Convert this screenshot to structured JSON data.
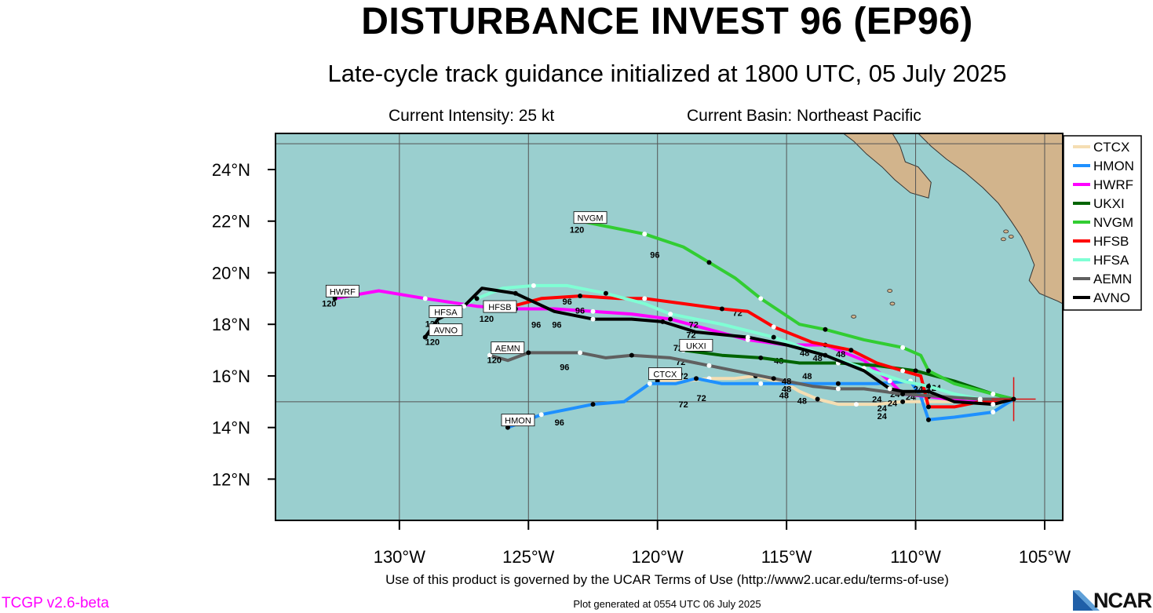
{
  "title": "DISTURBANCE INVEST 96 (EP96)",
  "subtitle": "Late-cycle track guidance initialized at 1800 UTC, 05 July 2025",
  "current_intensity": "Current Intensity: 25 kt",
  "current_basin": "Current Basin: Northeast Pacific",
  "terms": "Use of this product is governed by the UCAR Terms of Use (http://www2.ucar.edu/terms-of-use)",
  "generated": "Plot generated at 0554 UTC   06 July 2025",
  "version": "TCGP v2.6-beta",
  "logo_text": "NCAR",
  "colors": {
    "ocean": "#9acfcf",
    "land": "#d2b48c",
    "center_marker": "#e01010"
  },
  "map": {
    "lon_range": [
      -134.8,
      -104.3
    ],
    "lat_range": [
      10.4,
      25.4
    ],
    "lat_ticks": [
      {
        "value": 12,
        "label": "12°N"
      },
      {
        "value": 14,
        "label": "14°N"
      },
      {
        "value": 16,
        "label": "16°N"
      },
      {
        "value": 18,
        "label": "18°N"
      },
      {
        "value": 20,
        "label": "20°N"
      },
      {
        "value": 22,
        "label": "22°N"
      },
      {
        "value": 24,
        "label": "24°N"
      }
    ],
    "lon_ticks": [
      {
        "value": -130,
        "label": "130°W"
      },
      {
        "value": -125,
        "label": "125°W"
      },
      {
        "value": -120,
        "label": "120°W"
      },
      {
        "value": -115,
        "label": "115°W"
      },
      {
        "value": -110,
        "label": "110°W"
      },
      {
        "value": -105,
        "label": "105°W"
      }
    ],
    "grid_lons": [
      -130,
      -125,
      -120,
      -115,
      -110,
      -105
    ],
    "grid_lats": [
      15,
      25
    ],
    "initial_position": {
      "lon": -106.2,
      "lat": 15.1
    },
    "land": [
      [
        [
          -112.8,
          25.4
        ],
        [
          -112.4,
          25.1
        ],
        [
          -111.9,
          24.6
        ],
        [
          -111.3,
          24.1
        ],
        [
          -110.8,
          23.6
        ],
        [
          -110.2,
          23.1
        ],
        [
          -109.5,
          22.9
        ],
        [
          -109.4,
          23.5
        ],
        [
          -109.9,
          24.1
        ],
        [
          -110.4,
          24.3
        ],
        [
          -110.6,
          24.9
        ],
        [
          -110.9,
          25.4
        ]
      ],
      [
        [
          -109.9,
          25.4
        ],
        [
          -109.4,
          24.9
        ],
        [
          -108.8,
          24.4
        ],
        [
          -108.1,
          23.9
        ],
        [
          -107.4,
          23.3
        ],
        [
          -106.8,
          22.7
        ],
        [
          -106.3,
          22.0
        ],
        [
          -105.9,
          21.4
        ],
        [
          -105.6,
          20.8
        ],
        [
          -105.4,
          20.3
        ],
        [
          -105.6,
          19.7
        ],
        [
          -105.2,
          19.2
        ],
        [
          -104.5,
          18.9
        ],
        [
          -104.3,
          18.8
        ],
        [
          -104.3,
          25.4
        ]
      ]
    ],
    "islands": [
      {
        "lon": -106.5,
        "lat": 21.6
      },
      {
        "lon": -106.3,
        "lat": 21.4
      },
      {
        "lon": -106.6,
        "lat": 21.3
      },
      {
        "lon": -110.9,
        "lat": 18.8
      },
      {
        "lon": -112.4,
        "lat": 18.3
      },
      {
        "lon": -111.0,
        "lat": 19.3
      }
    ]
  },
  "legend": [
    {
      "name": "CTCX",
      "color": "#f5deb3"
    },
    {
      "name": "HMON",
      "color": "#1e90ff"
    },
    {
      "name": "HWRF",
      "color": "#ff00ff"
    },
    {
      "name": "UKXI",
      "color": "#006400"
    },
    {
      "name": "NVGM",
      "color": "#32cd32"
    },
    {
      "name": "HFSB",
      "color": "#ff0000"
    },
    {
      "name": "HFSA",
      "color": "#7fffd4"
    },
    {
      "name": "AEMN",
      "color": "#606060"
    },
    {
      "name": "AVNO",
      "color": "#000000"
    }
  ],
  "tracks": [
    {
      "name": "CTCX",
      "color": "#f5deb3",
      "label_pos": [
        -120.0,
        15.9
      ],
      "points": [
        [
          -106.2,
          15.1
        ],
        [
          -107.5,
          15.0
        ],
        [
          -109.0,
          15.0
        ],
        [
          -110.5,
          15.0
        ],
        [
          -111.5,
          14.9
        ],
        [
          -112.3,
          14.9
        ],
        [
          -113.0,
          14.9
        ],
        [
          -113.8,
          15.1
        ],
        [
          -114.5,
          15.4
        ],
        [
          -115.0,
          15.7
        ],
        [
          -115.8,
          15.9
        ],
        [
          -116.2,
          16.0
        ],
        [
          -117.0,
          15.9
        ],
        [
          -118.0,
          15.9
        ],
        [
          -119.0,
          15.8
        ],
        [
          -120.0,
          15.8
        ]
      ],
      "tau": [
        {
          "t": "24",
          "at": [
            -111.3,
            15.05
          ]
        },
        {
          "t": "48",
          "at": [
            -114.4,
            15.35
          ]
        },
        {
          "t": "72",
          "at": [
            -118.3,
            15.45
          ]
        }
      ]
    },
    {
      "name": "HMON",
      "color": "#1e90ff",
      "label_pos": [
        -125.8,
        14.1
      ],
      "points": [
        [
          -106.2,
          15.1
        ],
        [
          -107.0,
          14.6
        ],
        [
          -108.5,
          14.4
        ],
        [
          -109.5,
          14.3
        ],
        [
          -109.8,
          15.2
        ],
        [
          -110.2,
          15.8
        ],
        [
          -111.5,
          15.7
        ],
        [
          -113.0,
          15.7
        ],
        [
          -114.5,
          15.7
        ],
        [
          -116.0,
          15.7
        ],
        [
          -117.5,
          15.7
        ],
        [
          -118.5,
          15.9
        ],
        [
          -119.3,
          15.7
        ],
        [
          -120.3,
          15.7
        ],
        [
          -121.3,
          15.0
        ],
        [
          -122.5,
          14.9
        ],
        [
          -123.5,
          14.7
        ],
        [
          -124.5,
          14.5
        ],
        [
          -125.0,
          14.3
        ],
        [
          -125.8,
          14.0
        ]
      ],
      "tau": [
        {
          "t": "24",
          "at": [
            -111.5,
            15.4
          ]
        },
        {
          "t": "48",
          "at": [
            -115.0,
            15.8
          ]
        },
        {
          "t": "72",
          "at": [
            -119.0,
            15.2
          ]
        },
        {
          "t": "96",
          "at": [
            -123.8,
            14.5
          ]
        }
      ]
    },
    {
      "name": "HWRF",
      "color": "#ff00ff",
      "label_pos": [
        -133.0,
        19.1
      ],
      "points": [
        [
          -106.2,
          15.1
        ],
        [
          -107.0,
          15.0
        ],
        [
          -108.0,
          15.0
        ],
        [
          -109.5,
          15.2
        ],
        [
          -110.5,
          15.3
        ],
        [
          -111.0,
          15.8
        ],
        [
          -112.0,
          16.6
        ],
        [
          -113.5,
          17.2
        ],
        [
          -115.0,
          17.2
        ],
        [
          -116.5,
          17.4
        ],
        [
          -118.0,
          17.8
        ],
        [
          -119.5,
          18.2
        ],
        [
          -121.0,
          18.4
        ],
        [
          -122.5,
          18.5
        ],
        [
          -124.0,
          18.6
        ],
        [
          -125.5,
          18.6
        ],
        [
          -127.0,
          18.7
        ],
        [
          -129.0,
          19.0
        ],
        [
          -130.8,
          19.3
        ],
        [
          -132.5,
          19.0
        ]
      ],
      "tau": [
        {
          "t": "24",
          "at": [
            -110.8,
            15.6
          ]
        },
        {
          "t": "48",
          "at": [
            -115.3,
            16.9
          ]
        },
        {
          "t": "72",
          "at": [
            -118.7,
            17.9
          ]
        },
        {
          "t": "96",
          "at": [
            -123.9,
            18.3
          ]
        }
      ]
    },
    {
      "name": "UKXI",
      "color": "#006400",
      "label_pos": [
        -118.0,
        17.0
      ],
      "points": [
        [
          -106.2,
          15.1
        ],
        [
          -107.0,
          15.3
        ],
        [
          -108.5,
          15.8
        ],
        [
          -110.0,
          16.2
        ],
        [
          -111.5,
          16.4
        ],
        [
          -113.0,
          16.5
        ],
        [
          -114.5,
          16.5
        ],
        [
          -116.0,
          16.7
        ],
        [
          -117.5,
          16.8
        ],
        [
          -119.0,
          17.0
        ]
      ],
      "tau": [
        {
          "t": "24",
          "at": [
            -109.6,
            15.9
          ]
        },
        {
          "t": "48",
          "at": [
            -114.2,
            16.3
          ]
        },
        {
          "t": "72",
          "at": [
            -119.1,
            16.85
          ]
        }
      ]
    },
    {
      "name": "NVGM",
      "color": "#32cd32",
      "label_pos": [
        -123.0,
        22.0
      ],
      "points": [
        [
          -106.2,
          15.1
        ],
        [
          -107.0,
          15.3
        ],
        [
          -108.5,
          15.7
        ],
        [
          -109.5,
          16.2
        ],
        [
          -109.8,
          16.8
        ],
        [
          -110.5,
          17.1
        ],
        [
          -112.0,
          17.4
        ],
        [
          -113.5,
          17.8
        ],
        [
          -114.5,
          18.0
        ],
        [
          -116.0,
          19.0
        ],
        [
          -117.0,
          19.8
        ],
        [
          -118.0,
          20.4
        ],
        [
          -119.0,
          21.0
        ],
        [
          -120.5,
          21.5
        ],
        [
          -121.5,
          21.7
        ],
        [
          -123.0,
          22.0
        ]
      ],
      "tau": [
        {
          "t": "24",
          "at": [
            -109.2,
            15.85
          ]
        },
        {
          "t": "48",
          "at": [
            -112.9,
            17.15
          ]
        },
        {
          "t": "72",
          "at": [
            -116.9,
            18.75
          ]
        },
        {
          "t": "96",
          "at": [
            -120.1,
            21.0
          ]
        }
      ]
    },
    {
      "name": "HFSB",
      "color": "#ff0000",
      "label_pos": [
        -126.5,
        18.6
      ],
      "points": [
        [
          -106.2,
          15.1
        ],
        [
          -107.5,
          15.0
        ],
        [
          -108.5,
          14.8
        ],
        [
          -109.5,
          14.8
        ],
        [
          -109.8,
          16.0
        ],
        [
          -110.5,
          16.2
        ],
        [
          -111.5,
          16.5
        ],
        [
          -112.5,
          17.0
        ],
        [
          -114.0,
          17.3
        ],
        [
          -115.5,
          17.9
        ],
        [
          -116.5,
          18.5
        ],
        [
          -117.5,
          18.6
        ],
        [
          -119.0,
          18.8
        ],
        [
          -120.5,
          19.0
        ],
        [
          -121.5,
          19.0
        ],
        [
          -123.0,
          19.1
        ],
        [
          -124.5,
          19.0
        ],
        [
          -126.0,
          18.6
        ]
      ],
      "tau": [
        {
          "t": "24",
          "at": [
            -109.9,
            15.8
          ]
        },
        {
          "t": "48",
          "at": [
            -113.8,
            17.0
          ]
        },
        {
          "t": "72",
          "at": [
            -118.6,
            18.3
          ]
        },
        {
          "t": "96",
          "at": [
            -123.0,
            18.85
          ]
        }
      ]
    },
    {
      "name": "HFSA",
      "color": "#7fffd4",
      "label_pos": [
        -128.6,
        18.4
      ],
      "points": [
        [
          -106.2,
          15.1
        ],
        [
          -107.5,
          15.1
        ],
        [
          -108.5,
          15.3
        ],
        [
          -109.5,
          15.6
        ],
        [
          -110.5,
          15.8
        ],
        [
          -112.0,
          16.3
        ],
        [
          -113.5,
          16.8
        ],
        [
          -115.5,
          17.5
        ],
        [
          -117.5,
          18.0
        ],
        [
          -119.5,
          18.4
        ],
        [
          -120.5,
          18.8
        ],
        [
          -122.0,
          19.2
        ],
        [
          -123.5,
          19.5
        ],
        [
          -124.8,
          19.5
        ],
        [
          -126.0,
          19.4
        ],
        [
          -127.0,
          19.0
        ],
        [
          -128.0,
          18.5
        ]
      ],
      "tau": [
        {
          "t": "24",
          "at": [
            -110.2,
            15.5
          ]
        },
        {
          "t": "48",
          "at": [
            -114.3,
            17.2
          ]
        },
        {
          "t": "72",
          "at": [
            -118.5,
            17.5
          ]
        },
        {
          "t": "96",
          "at": [
            -123.5,
            19.2
          ]
        }
      ]
    },
    {
      "name": "AEMN",
      "color": "#606060",
      "label_pos": [
        -126.0,
        16.8
      ],
      "points": [
        [
          -106.2,
          15.1
        ],
        [
          -107.5,
          15.1
        ],
        [
          -109.0,
          15.2
        ],
        [
          -110.5,
          15.3
        ],
        [
          -112.0,
          15.5
        ],
        [
          -113.0,
          15.5
        ],
        [
          -114.0,
          15.6
        ],
        [
          -115.5,
          15.9
        ],
        [
          -116.5,
          16.1
        ],
        [
          -118.0,
          16.4
        ],
        [
          -119.5,
          16.7
        ],
        [
          -121.0,
          16.8
        ],
        [
          -122.0,
          16.7
        ],
        [
          -123.0,
          16.9
        ],
        [
          -124.5,
          16.9
        ],
        [
          -125.0,
          16.9
        ],
        [
          -125.8,
          16.6
        ],
        [
          -126.5,
          16.8
        ]
      ],
      "tau": [
        {
          "t": "24",
          "at": [
            -110.9,
            15.25
          ]
        },
        {
          "t": "48",
          "at": [
            -115.1,
            15.55
          ]
        },
        {
          "t": "72",
          "at": [
            -119.0,
            16.3
          ]
        },
        {
          "t": "96",
          "at": [
            -123.6,
            16.65
          ]
        }
      ]
    },
    {
      "name": "AVNO",
      "color": "#000000",
      "label_pos": [
        -128.8,
        17.6
      ],
      "points": [
        [
          -106.2,
          15.1
        ],
        [
          -107.0,
          14.9
        ],
        [
          -108.5,
          15.0
        ],
        [
          -109.5,
          15.4
        ],
        [
          -110.5,
          15.4
        ],
        [
          -111.0,
          15.5
        ],
        [
          -112.0,
          16.2
        ],
        [
          -113.5,
          16.8
        ],
        [
          -115.0,
          17.2
        ],
        [
          -116.5,
          17.5
        ],
        [
          -118.5,
          17.7
        ],
        [
          -119.8,
          18.1
        ],
        [
          -121.0,
          18.2
        ],
        [
          -122.5,
          18.2
        ],
        [
          -124.0,
          18.5
        ],
        [
          -125.5,
          19.2
        ],
        [
          -126.8,
          19.4
        ],
        [
          -127.5,
          18.7
        ],
        [
          -128.5,
          18.2
        ],
        [
          -129.0,
          17.5
        ]
      ],
      "tau": [
        {
          "t": "24",
          "at": [
            -111.3,
            14.75
          ]
        },
        {
          "t": "48",
          "at": [
            -115.0,
            16.1
          ]
        },
        {
          "t": "72",
          "at": [
            -119.2,
            17.4
          ]
        },
        {
          "t": "96",
          "at": [
            -124.7,
            18.3
          ]
        }
      ]
    }
  ],
  "model_labels": [
    {
      "name": "HWRF",
      "tau": "120",
      "lon": -132.6,
      "lat": 19.0
    },
    {
      "name": "HFSA",
      "tau": "120",
      "lon": -128.6,
      "lat": 18.2
    },
    {
      "name": "HFSB",
      "tau": "120",
      "lon": -126.5,
      "lat": 18.4
    },
    {
      "name": "AVNO",
      "tau": "120",
      "lon": -128.6,
      "lat": 17.5
    },
    {
      "name": "AEMN",
      "tau": "120",
      "lon": -126.2,
      "lat": 16.8
    },
    {
      "name": "NVGM",
      "tau": "120",
      "lon": -123.0,
      "lat": 21.85
    },
    {
      "name": "UKXI",
      "tau": "",
      "lon": -118.9,
      "lat": 16.9
    },
    {
      "name": "CTCX",
      "tau": "",
      "lon": -120.1,
      "lat": 15.8
    },
    {
      "name": "HMON",
      "tau": "",
      "lon": -125.8,
      "lat": 14.0
    }
  ]
}
